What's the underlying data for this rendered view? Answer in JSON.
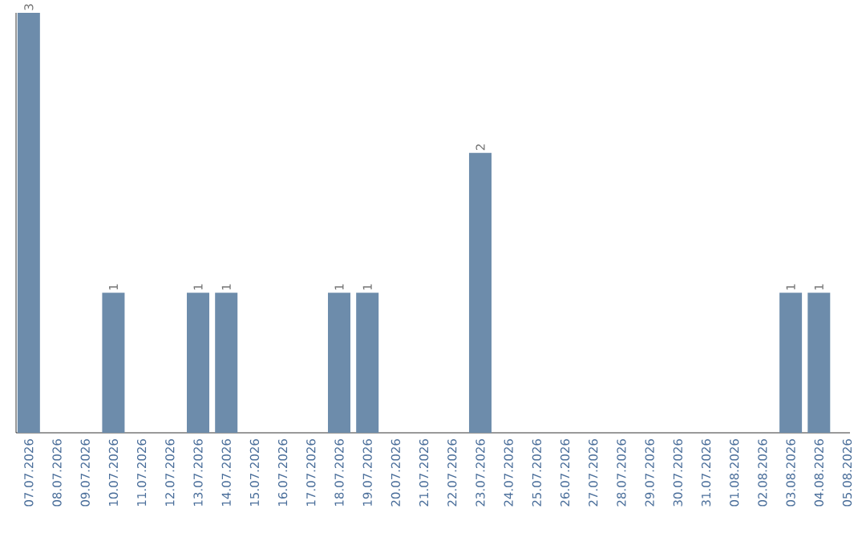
{
  "chart_data": {
    "type": "bar",
    "categories": [
      "07.07.2026",
      "08.07.2026",
      "09.07.2026",
      "10.07.2026",
      "11.07.2026",
      "12.07.2026",
      "13.07.2026",
      "14.07.2026",
      "15.07.2026",
      "16.07.2026",
      "17.07.2026",
      "18.07.2026",
      "19.07.2026",
      "20.07.2026",
      "21.07.2026",
      "22.07.2026",
      "23.07.2026",
      "24.07.2026",
      "25.07.2026",
      "26.07.2026",
      "27.07.2026",
      "28.07.2026",
      "29.07.2026",
      "30.07.2026",
      "31.07.2026",
      "01.08.2026",
      "02.08.2026",
      "03.08.2026",
      "04.08.2026",
      "05.08.2026"
    ],
    "values": [
      3,
      0,
      0,
      1,
      0,
      0,
      1,
      1,
      0,
      0,
      0,
      1,
      1,
      0,
      0,
      0,
      2,
      0,
      0,
      0,
      0,
      0,
      0,
      0,
      0,
      0,
      0,
      1,
      1,
      0
    ],
    "value_labels": [
      "3",
      null,
      null,
      "1",
      null,
      null,
      "1",
      "1",
      null,
      null,
      null,
      "1",
      "1",
      null,
      null,
      null,
      "2",
      null,
      null,
      null,
      null,
      null,
      null,
      null,
      null,
      null,
      null,
      "1",
      "1",
      null
    ],
    "color": "#6d8cab"
  }
}
